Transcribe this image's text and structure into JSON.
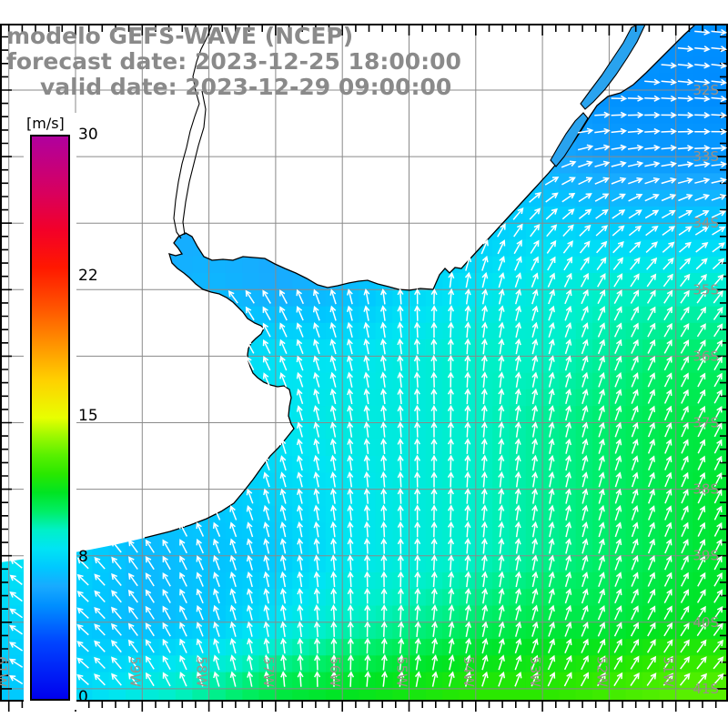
{
  "title": {
    "model_line": "modelo GEFS-WAVE (NCEP)",
    "forecast_line": "forecast date: 2023-12-25 18:00:00",
    "valid_line": "valid date: 2023-12-29 09:00:00"
  },
  "colorbar": {
    "unit_label": "[m/s]",
    "tick_labels": [
      "30",
      "22",
      "15",
      "8",
      "0"
    ],
    "min": 0,
    "max": 30
  },
  "map_labels": {
    "lon": [
      "61W",
      "60W",
      "59W",
      "58W",
      "57W",
      "56W",
      "55W",
      "54W",
      "53W",
      "52W",
      "51W"
    ],
    "lat": [
      "32S",
      "33S",
      "34S",
      "35S",
      "36S",
      "37S",
      "38S",
      "39S",
      "40S",
      "41S"
    ]
  },
  "colors": {
    "grid_line": "#8a8a8a",
    "coastline": "#000000",
    "land_fill": "#ffffff",
    "lagoon_fill": "#29a3ef",
    "arrow": "#ffffff",
    "title_text": "#8a8a8a",
    "geo_label_text": "#9a9186",
    "frame": "#000000",
    "colormap": [
      [
        0,
        "#0000ee"
      ],
      [
        3,
        "#0044ff"
      ],
      [
        5,
        "#0090ff"
      ],
      [
        6,
        "#18aaff"
      ],
      [
        7,
        "#00c8ff"
      ],
      [
        8,
        "#00e4f4"
      ],
      [
        9,
        "#00f0c8"
      ],
      [
        10,
        "#00ee66"
      ],
      [
        11,
        "#00e422"
      ],
      [
        12,
        "#2ae800"
      ],
      [
        13,
        "#58f000"
      ],
      [
        14,
        "#9cf800"
      ],
      [
        15,
        "#e8ff00"
      ],
      [
        17,
        "#ffd000"
      ],
      [
        19,
        "#ff9000"
      ],
      [
        21,
        "#ff5000"
      ],
      [
        23,
        "#ff1800"
      ],
      [
        25,
        "#f30028"
      ],
      [
        27,
        "#d8005e"
      ],
      [
        30,
        "#b0009e"
      ]
    ]
  },
  "chart_data": {
    "type": "heatmap",
    "units": "m/s",
    "colorbar_range": [
      0,
      30
    ],
    "lat_axis": {
      "start_deg_south": 31,
      "step_deg": 1,
      "rows": 11
    },
    "lon_axis": {
      "start_deg_west": 61,
      "step_deg": -1,
      "cols": 12
    },
    "speed_grid": [
      [
        6,
        6,
        6,
        6,
        6,
        6,
        6,
        5.5,
        5.5,
        5.5,
        5,
        5
      ],
      [
        6,
        6,
        6,
        6,
        6,
        6,
        6,
        5.5,
        5.5,
        5,
        5,
        4.8
      ],
      [
        6.5,
        6.5,
        6.5,
        6.5,
        6.5,
        6.5,
        7,
        6.5,
        6,
        5.5,
        5.3,
        5.3
      ],
      [
        6,
        6,
        6,
        6,
        6,
        6.5,
        6,
        7,
        7.5,
        7,
        7,
        7
      ],
      [
        6,
        6,
        6,
        6.5,
        6,
        6.5,
        7.5,
        8,
        8.5,
        9,
        9,
        9
      ],
      [
        7,
        7,
        7,
        7.5,
        8,
        8,
        8.5,
        9,
        9,
        9.5,
        10,
        10
      ],
      [
        7.5,
        7.5,
        7.5,
        7.5,
        8,
        8.5,
        8.5,
        9,
        9.5,
        10,
        10.5,
        10.5
      ],
      [
        7,
        7,
        7,
        7,
        7.5,
        8,
        8.5,
        9,
        9.5,
        10,
        10.5,
        11
      ],
      [
        8,
        7.5,
        6.5,
        6.8,
        7,
        8,
        8.5,
        9,
        9.5,
        10,
        10.5,
        11
      ],
      [
        7.5,
        7,
        6.5,
        7,
        8,
        9,
        9.5,
        10,
        10.5,
        10.5,
        11,
        11
      ],
      [
        7,
        7.5,
        8.5,
        9.5,
        10.5,
        11,
        11.5,
        12,
        12,
        12.5,
        13,
        13
      ]
    ],
    "direction_grid_math_deg": [
      [
        135,
        135,
        135,
        132,
        120,
        100,
        60,
        15,
        2,
        -3,
        -5,
        -5
      ],
      [
        135,
        135,
        133,
        128,
        115,
        92,
        50,
        15,
        3,
        -3,
        -5,
        -8
      ],
      [
        135,
        134,
        130,
        124,
        110,
        82,
        58,
        38,
        22,
        12,
        6,
        2
      ],
      [
        140,
        138,
        135,
        128,
        115,
        92,
        76,
        62,
        48,
        38,
        32,
        26
      ],
      [
        142,
        140,
        137,
        131,
        120,
        106,
        92,
        80,
        70,
        62,
        56,
        50
      ],
      [
        140,
        138,
        134,
        125,
        114,
        105,
        96,
        86,
        76,
        68,
        62,
        58
      ],
      [
        136,
        134,
        129,
        119,
        109,
        100,
        93,
        86,
        79,
        71,
        66,
        61
      ],
      [
        136,
        133,
        127,
        117,
        107,
        98,
        92,
        86,
        80,
        73,
        67,
        62
      ],
      [
        141,
        136,
        124,
        112,
        102,
        95,
        90,
        85,
        79,
        71,
        66,
        61
      ],
      [
        146,
        139,
        125,
        110,
        100,
        92,
        86,
        79,
        72,
        66,
        59,
        53
      ],
      [
        149,
        141,
        123,
        108,
        96,
        88,
        80,
        72,
        65,
        58,
        51,
        46
      ]
    ]
  }
}
